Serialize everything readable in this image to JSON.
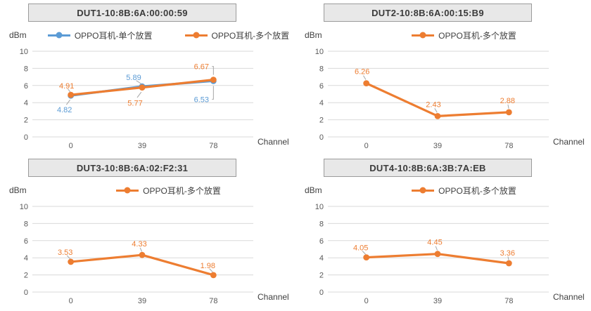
{
  "palette": {
    "blue": "#5B9BD5",
    "orange": "#ED7D31",
    "gridline": "#D9D9D9",
    "axis_text": "#595959",
    "leader": "#A6A6A6",
    "title_bg": "#E8E8E8",
    "title_border": "#9B9B9B",
    "text_dark": "#404040"
  },
  "chart_data": [
    {
      "type": "line",
      "title": "DUT1-10:8B:6A:00:00:59",
      "ylabel": "dBm",
      "xlabel": "Channel",
      "categories": [
        "0",
        "39",
        "78"
      ],
      "ylim": [
        0,
        10
      ],
      "ytick_step": 2,
      "grid": "horizontal",
      "legend_position": "top",
      "series": [
        {
          "name": "OPPO耳机-单个放置",
          "color": "#5B9BD5",
          "values": [
            4.82,
            5.89,
            6.53
          ],
          "labels": [
            {
              "dx": -9,
              "dy": 20,
              "leader": "line"
            },
            {
              "dx": -12,
              "dy": -13,
              "leader": "line"
            },
            {
              "dx": -17,
              "dy": 26,
              "leader": "elbow"
            }
          ]
        },
        {
          "name": "OPPO耳机-多个放置",
          "color": "#ED7D31",
          "values": [
            4.91,
            5.77,
            6.67
          ],
          "labels": [
            {
              "dx": -6,
              "dy": -13,
              "leader": "line"
            },
            {
              "dx": -10,
              "dy": 22,
              "leader": "line"
            },
            {
              "dx": -17,
              "dy": -19,
              "leader": "elbow"
            }
          ]
        }
      ]
    },
    {
      "type": "line",
      "title": "DUT2-10:8B:6A:00:15:B9",
      "ylabel": "dBm",
      "xlabel": "Channel",
      "categories": [
        "0",
        "39",
        "78"
      ],
      "ylim": [
        0,
        10
      ],
      "ytick_step": 2,
      "grid": "horizontal",
      "legend_position": "top",
      "series": [
        {
          "name": "OPPO耳机-多个放置",
          "color": "#ED7D31",
          "values": [
            6.26,
            2.43,
            2.88
          ],
          "labels": [
            {
              "dx": -6,
              "dy": -17,
              "leader": "line"
            },
            {
              "dx": -6,
              "dy": -17,
              "leader": "line"
            },
            {
              "dx": -2,
              "dy": -17,
              "leader": "line"
            }
          ]
        }
      ]
    },
    {
      "type": "line",
      "title": "DUT3-10:8B:6A:02:F2:31",
      "ylabel": "dBm",
      "xlabel": "Channel",
      "categories": [
        "0",
        "39",
        "78"
      ],
      "ylim": [
        0,
        10
      ],
      "ytick_step": 2,
      "grid": "horizontal",
      "legend_position": "top",
      "series": [
        {
          "name": "OPPO耳机-多个放置",
          "color": "#ED7D31",
          "values": [
            3.53,
            4.33,
            1.98
          ],
          "labels": [
            {
              "dx": -8,
              "dy": -14,
              "leader": "line"
            },
            {
              "dx": -4,
              "dy": -16,
              "leader": "line"
            },
            {
              "dx": -8,
              "dy": -14,
              "leader": "line"
            }
          ]
        }
      ]
    },
    {
      "type": "line",
      "title": "DUT4-10:8B:6A:3B:7A:EB",
      "ylabel": "dBm",
      "xlabel": "Channel",
      "categories": [
        "0",
        "39",
        "78"
      ],
      "ylim": [
        0,
        10
      ],
      "ytick_step": 2,
      "grid": "horizontal",
      "legend_position": "top",
      "series": [
        {
          "name": "OPPO耳机-多个放置",
          "color": "#ED7D31",
          "values": [
            4.05,
            4.45,
            3.36
          ],
          "labels": [
            {
              "dx": -8,
              "dy": -14,
              "leader": "line"
            },
            {
              "dx": -4,
              "dy": -17,
              "leader": "line"
            },
            {
              "dx": -2,
              "dy": -15,
              "leader": "line"
            }
          ]
        }
      ]
    }
  ]
}
